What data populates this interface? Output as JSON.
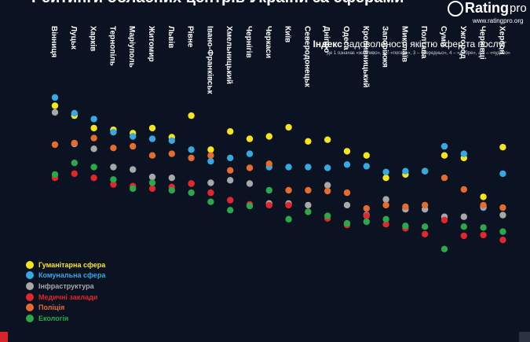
{
  "page": {
    "title": "Рейтинги обласних центрів України за сферами",
    "logo": {
      "brand": "Rating",
      "suffix": "pro"
    },
    "url": "www.ratingpro.org",
    "index_title_bold": "Індекс",
    "index_title_rest": " задоволеності якістю сфер та послуг",
    "index_subtitle": "де 1 означає «жахливо», 2 – «погано», 3 – «середньо», 4 – «добре», а 5 – «чудово»"
  },
  "colors": {
    "background": "#0b1221",
    "Гуманітарна сфера": "#f7e51b",
    "Комунальна сфера": "#36a9e1",
    "Інфраструктура": "#a8a8a8",
    "Медичні заклади": "#e2262b",
    "Поліція": "#e56b2e",
    "Екологія": "#2aa84a"
  },
  "chart_data": {
    "type": "scatter",
    "title": "Рейтинги обласних центрів України за сферами",
    "ylim": [
      1.8,
      4.6
    ],
    "grid": false,
    "legend_position": "bottom-left",
    "categories": [
      "Вінниця",
      "Луцьк",
      "Харків",
      "Тернопіль",
      "Маріуполь",
      "Житомир",
      "Львів",
      "Рівне",
      "Івано-Франківськ",
      "Хмельницький",
      "Чернігів",
      "Черкаси",
      "Київ",
      "Северодонецьк",
      "Дніпро",
      "Одеса",
      "Кропивницький",
      "Запоріжжя",
      "Миколаїв",
      "Полтава",
      "Суми",
      "Ужгород",
      "Чернівці",
      "Херсон"
    ],
    "series": [
      {
        "name": "Гуманітарна сфера",
        "values": [
          4.32,
          4.2,
          4.05,
          4.03,
          3.99,
          4.05,
          3.94,
          4.2,
          3.79,
          4.01,
          3.92,
          3.95,
          4.06,
          3.89,
          3.91,
          3.77,
          3.72,
          3.45,
          3.49,
          3.53,
          3.72,
          3.69,
          3.22,
          3.82
        ]
      },
      {
        "name": "Комунальна сфера",
        "values": [
          4.42,
          4.23,
          4.16,
          4.0,
          3.95,
          3.92,
          3.9,
          3.79,
          3.65,
          3.69,
          3.74,
          3.58,
          3.58,
          3.58,
          3.57,
          3.61,
          3.59,
          3.52,
          3.53,
          3.53,
          3.83,
          3.74,
          3.09,
          3.5
        ]
      },
      {
        "name": "Інфраструктура",
        "values": [
          4.24,
          3.86,
          3.8,
          3.58,
          3.55,
          3.46,
          3.45,
          3.38,
          3.39,
          3.42,
          3.38,
          3.14,
          3.14,
          3.12,
          3.36,
          3.12,
          3.0,
          3.19,
          3.07,
          3.07,
          2.98,
          2.98,
          3.1,
          3.0
        ]
      },
      {
        "name": "Медичні заклади",
        "values": [
          3.45,
          3.5,
          3.45,
          3.37,
          3.35,
          3.32,
          3.34,
          3.38,
          3.27,
          3.18,
          3.13,
          3.12,
          3.12,
          3.04,
          2.96,
          2.88,
          2.99,
          2.89,
          2.84,
          2.77,
          2.94,
          2.75,
          2.76,
          2.7
        ]
      },
      {
        "name": "Поліція",
        "values": [
          3.85,
          3.87,
          3.93,
          3.81,
          3.83,
          3.72,
          3.74,
          3.69,
          3.72,
          3.54,
          3.57,
          3.62,
          3.3,
          3.3,
          3.29,
          3.27,
          3.08,
          3.12,
          3.1,
          3.12,
          3.45,
          3.31,
          3.12,
          3.09
        ]
      },
      {
        "name": "Екологія",
        "values": [
          3.49,
          3.63,
          3.58,
          3.43,
          3.32,
          3.39,
          3.3,
          3.27,
          3.16,
          3.06,
          3.11,
          3.3,
          2.95,
          3.04,
          2.99,
          2.9,
          2.92,
          2.95,
          2.87,
          2.86,
          2.59,
          2.86,
          2.85,
          2.8
        ]
      }
    ]
  },
  "footer": {}
}
